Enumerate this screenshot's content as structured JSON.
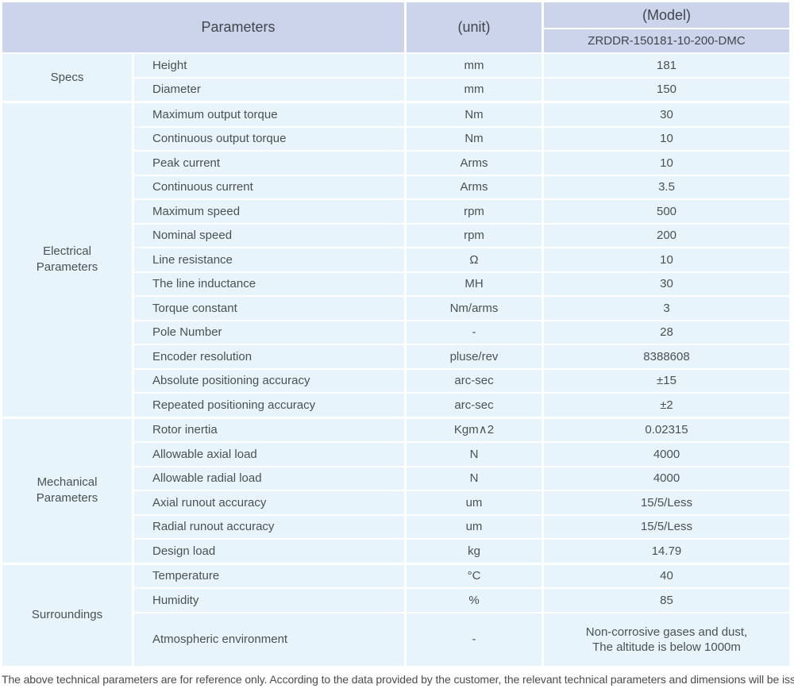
{
  "header": {
    "parameters_label": "Parameters",
    "unit_label": "(unit)",
    "model_label": "(Model)",
    "model_number": "ZRDDR-150181-10-200-DMC"
  },
  "sections": [
    {
      "id": "specs",
      "label": "Specs",
      "rows": [
        {
          "name": "Height",
          "unit": "mm",
          "value": "181"
        },
        {
          "name": "Diameter",
          "unit": "mm",
          "value": "150"
        }
      ]
    },
    {
      "id": "electrical-parameters",
      "label": "Electrical\nParameters",
      "rows": [
        {
          "name": "Maximum output torque",
          "unit": "Nm",
          "value": "30"
        },
        {
          "name": "Continuous output torque",
          "unit": "Nm",
          "value": "10"
        },
        {
          "name": "Peak current",
          "unit": "Arms",
          "value": "10"
        },
        {
          "name": "Continuous current",
          "unit": "Arms",
          "value": "3.5"
        },
        {
          "name": "Maximum speed",
          "unit": "rpm",
          "value": "500"
        },
        {
          "name": "Nominal speed",
          "unit": "rpm",
          "value": "200"
        },
        {
          "name": "Line resistance",
          "unit": "Ω",
          "value": "10"
        },
        {
          "name": "The line inductance",
          "unit": "MH",
          "value": "30"
        },
        {
          "name": "Torque constant",
          "unit": "Nm/arms",
          "value": "3"
        },
        {
          "name": "Pole Number",
          "unit": "-",
          "value": "28"
        },
        {
          "name": "Encoder resolution",
          "unit": "pluse/rev",
          "value": "8388608"
        },
        {
          "name": "Absolute positioning accuracy",
          "unit": "arc-sec",
          "value": "±15"
        },
        {
          "name": "Repeated positioning accuracy",
          "unit": "arc-sec",
          "value": "±2"
        }
      ]
    },
    {
      "id": "mechanical-parameters",
      "label": "Mechanical\nParameters",
      "rows": [
        {
          "name": "Rotor inertia",
          "unit": "Kgm∧2",
          "value": "0.02315"
        },
        {
          "name": "Allowable axial load",
          "unit": "N",
          "value": "4000"
        },
        {
          "name": "Allowable radial load",
          "unit": "N",
          "value": "4000"
        },
        {
          "name": "Axial runout accuracy",
          "unit": "um",
          "value": "15/5/Less"
        },
        {
          "name": "Radial runout accuracy",
          "unit": "um",
          "value": "15/5/Less"
        },
        {
          "name": "Design load",
          "unit": "kg",
          "value": "14.79"
        }
      ]
    },
    {
      "id": "surroundings",
      "label": "Surroundings",
      "rows": [
        {
          "name": "Temperature",
          "unit": "°C",
          "value": "40"
        },
        {
          "name": "Humidity",
          "unit": "%",
          "value": "85"
        },
        {
          "name": "Atmospheric environment",
          "unit": "-",
          "value": "Non-corrosive gases and dust,\nThe altitude is below 1000m"
        }
      ]
    }
  ],
  "footer": {
    "note": "The above technical parameters are for reference only. According to the data provided by the customer, the relevant technical parameters and dimensions will be issued."
  },
  "colors": {
    "header_bg": "#cbd4eb",
    "row_bg": "#e7f4fc",
    "text": "#4a5056"
  }
}
